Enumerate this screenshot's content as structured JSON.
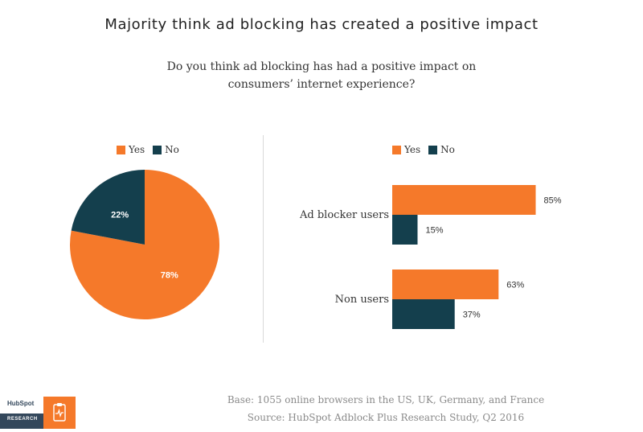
{
  "title": "Majority think ad blocking has created a positive impact",
  "subtitle": "Do you think ad blocking has had a positive impact on consumers’ internet experience?",
  "colors": {
    "yes": "#f5792a",
    "no": "#143f4d",
    "text": "#222222",
    "muted": "#8a8a8a"
  },
  "legend": {
    "yes": "Yes",
    "no": "No"
  },
  "chart_data": [
    {
      "type": "pie",
      "slices": [
        {
          "label": "Yes",
          "value": 78,
          "display": "78%"
        },
        {
          "label": "No",
          "value": 22,
          "display": "22%"
        }
      ]
    },
    {
      "type": "bar",
      "orientation": "horizontal",
      "categories": [
        "Ad blocker users",
        "Non users"
      ],
      "series": [
        {
          "name": "Yes",
          "values": [
            85,
            63
          ],
          "labels": [
            "85%",
            "63%"
          ]
        },
        {
          "name": "No",
          "values": [
            15,
            37
          ],
          "labels": [
            "15%",
            "37%"
          ]
        }
      ],
      "xlim": [
        0,
        100
      ]
    }
  ],
  "footer": {
    "base": "Base: 1055 online browsers in the US, UK, Germany, and France",
    "source": "Source: HubSpot Adblock Plus Research Study, Q2 2016",
    "logo_text": "HubSpot",
    "logo_sub": "RESEARCH"
  }
}
